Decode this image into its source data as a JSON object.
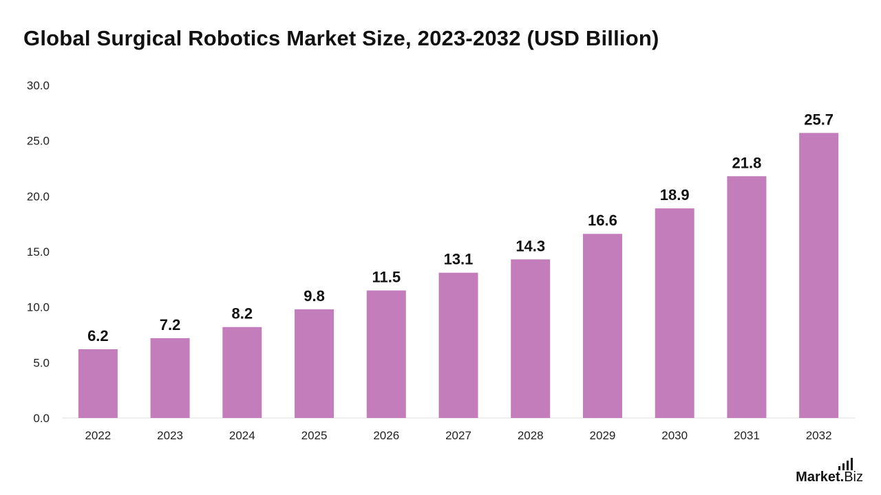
{
  "chart_data": {
    "type": "bar",
    "title": "Global Surgical Robotics Market Size, 2023-2032 (USD Billion)",
    "categories": [
      "2022",
      "2023",
      "2024",
      "2025",
      "2026",
      "2027",
      "2028",
      "2029",
      "2030",
      "2031",
      "2032"
    ],
    "values": [
      6.2,
      7.2,
      8.2,
      9.8,
      11.5,
      13.1,
      14.3,
      16.6,
      18.9,
      21.8,
      25.7
    ],
    "value_labels": [
      "6.2",
      "7.2",
      "8.2",
      "9.8",
      "11.5",
      "13.1",
      "14.3",
      "16.6",
      "18.9",
      "21.8",
      "25.7"
    ],
    "ylim": [
      0,
      30
    ],
    "yticks": [
      "0.0",
      "5.0",
      "10.0",
      "15.0",
      "20.0",
      "25.0",
      "30.0"
    ],
    "ytick_values": [
      0,
      5,
      10,
      15,
      20,
      25,
      30
    ],
    "grid": false,
    "bar_color": "#c47dbb",
    "xlabel": "",
    "ylabel": ""
  },
  "brand": {
    "name": "Market",
    "dot": ".",
    "tld": "Biz"
  }
}
